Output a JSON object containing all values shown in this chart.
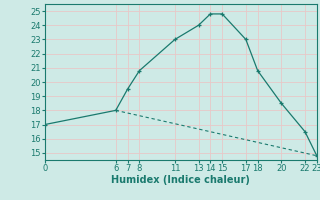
{
  "title": "",
  "xlabel": "Humidex (Indice chaleur)",
  "bg_color": "#ceeae6",
  "grid_color_major": "#e8c8c8",
  "grid_color_minor": "#d8eee8",
  "line_color": "#1a7a6e",
  "line1_x": [
    0,
    6,
    7,
    8,
    11,
    13,
    14,
    15,
    17,
    18,
    20,
    22,
    23
  ],
  "line1_y": [
    17,
    18,
    19.5,
    20.8,
    23,
    24,
    24.8,
    24.8,
    23,
    20.8,
    18.5,
    16.5,
    14.8
  ],
  "line2_x": [
    6,
    23
  ],
  "line2_y": [
    18,
    14.8
  ],
  "xticks": [
    0,
    6,
    7,
    8,
    11,
    13,
    14,
    15,
    17,
    18,
    20,
    22,
    23
  ],
  "yticks": [
    15,
    16,
    17,
    18,
    19,
    20,
    21,
    22,
    23,
    24,
    25
  ],
  "xlim": [
    0,
    23
  ],
  "ylim": [
    14.5,
    25.5
  ],
  "xlabel_fontsize": 7,
  "tick_fontsize": 6
}
